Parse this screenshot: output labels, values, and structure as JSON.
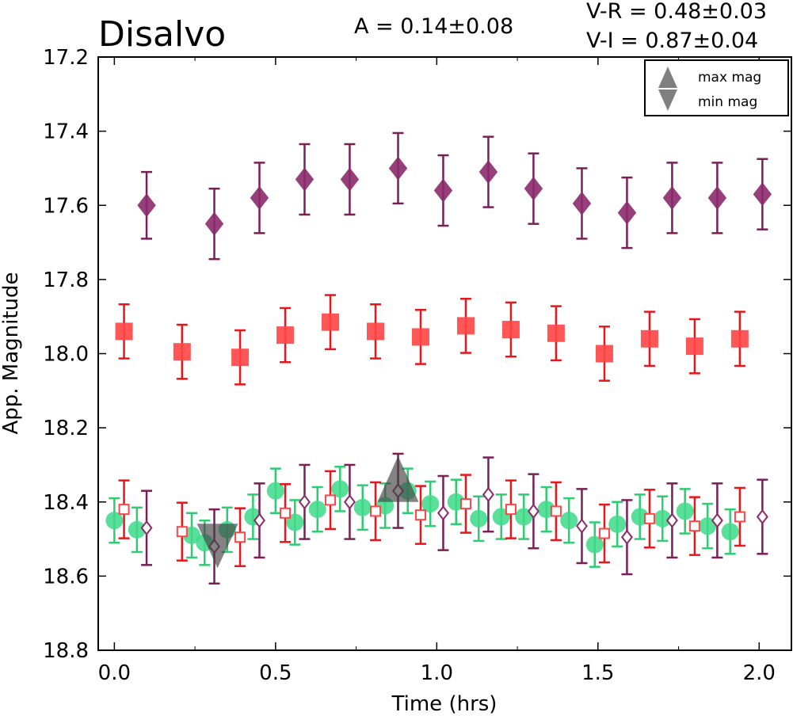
{
  "header": {
    "title": "Disalvo",
    "amplitude": "A  = 0.14±0.08",
    "color_vr": "V-R = 0.48±0.03",
    "color_vi": "V-I  = 0.87±0.04"
  },
  "chart_data": {
    "type": "scatter",
    "xlabel": "Time (hrs)",
    "ylabel": "App. Magnitude",
    "xlim": [
      -0.05,
      2.1
    ],
    "ylim": [
      18.8,
      17.2
    ],
    "y_inverted": true,
    "grid": false,
    "legend_position": "top-right",
    "x_ticks": [
      "0.0",
      "0.5",
      "1.0",
      "1.5",
      "2.0"
    ],
    "x_tick_values": [
      0.0,
      0.5,
      1.0,
      1.5,
      2.0
    ],
    "y_ticks": [
      "17.2",
      "17.4",
      "17.6",
      "17.8",
      "18.0",
      "18.2",
      "18.4",
      "18.6",
      "18.8"
    ],
    "y_tick_values": [
      17.2,
      17.4,
      17.6,
      17.8,
      18.0,
      18.2,
      18.4,
      18.6,
      18.8
    ],
    "legend": [
      {
        "label": "max mag",
        "marker": "triangle-up",
        "color": "#808080"
      },
      {
        "label": "min mag",
        "marker": "triangle-down",
        "color": "#808080"
      }
    ],
    "series": [
      {
        "marker": "diamond-filled",
        "color": "#8b2a6b",
        "errcolor": "#7a1f55",
        "x": [
          0.1,
          0.31,
          0.45,
          0.59,
          0.73,
          0.88,
          1.02,
          1.16,
          1.3,
          1.45,
          1.59,
          1.73,
          1.87,
          2.01
        ],
        "y": [
          17.6,
          17.65,
          17.58,
          17.53,
          17.53,
          17.5,
          17.56,
          17.51,
          17.555,
          17.595,
          17.62,
          17.58,
          17.58,
          17.57
        ],
        "err": [
          0.09,
          0.095,
          0.095,
          0.095,
          0.095,
          0.095,
          0.095,
          0.095,
          0.095,
          0.095,
          0.095,
          0.095,
          0.095,
          0.095
        ]
      },
      {
        "marker": "square-filled",
        "color": "#ff4545",
        "errcolor": "#e8151a",
        "x": [
          0.03,
          0.21,
          0.39,
          0.53,
          0.67,
          0.81,
          0.95,
          1.09,
          1.23,
          1.37,
          1.52,
          1.66,
          1.8,
          1.94
        ],
        "y": [
          17.94,
          17.995,
          18.01,
          17.95,
          17.915,
          17.94,
          17.955,
          17.925,
          17.935,
          17.945,
          18.0,
          17.96,
          17.98,
          17.96
        ],
        "err": [
          0.073,
          0.073,
          0.073,
          0.073,
          0.073,
          0.073,
          0.073,
          0.073,
          0.073,
          0.073,
          0.073,
          0.073,
          0.073,
          0.073
        ]
      },
      {
        "marker": "circle-filled",
        "color": "#3dd98a",
        "errcolor": "#2ecc71",
        "x": [
          0.0,
          0.07,
          0.24,
          0.28,
          0.35,
          0.43,
          0.5,
          0.56,
          0.63,
          0.7,
          0.77,
          0.84,
          0.91,
          0.98,
          1.06,
          1.13,
          1.2,
          1.27,
          1.34,
          1.41,
          1.49,
          1.56,
          1.63,
          1.7,
          1.77,
          1.84,
          1.91
        ],
        "y": [
          18.45,
          18.475,
          18.49,
          18.51,
          18.475,
          18.44,
          18.37,
          18.455,
          18.42,
          18.365,
          18.415,
          18.41,
          18.37,
          18.405,
          18.4,
          18.445,
          18.44,
          18.44,
          18.42,
          18.45,
          18.515,
          18.46,
          18.44,
          18.445,
          18.425,
          18.465,
          18.48
        ],
        "err": [
          0.06,
          0.06,
          0.06,
          0.06,
          0.06,
          0.06,
          0.06,
          0.06,
          0.06,
          0.06,
          0.06,
          0.06,
          0.06,
          0.06,
          0.06,
          0.06,
          0.06,
          0.06,
          0.06,
          0.06,
          0.06,
          0.06,
          0.06,
          0.06,
          0.06,
          0.06,
          0.06
        ]
      },
      {
        "marker": "square-open",
        "color": "#ff4545",
        "errcolor": "#e8151a",
        "x": [
          0.03,
          0.21,
          0.39,
          0.53,
          0.67,
          0.81,
          0.95,
          1.09,
          1.23,
          1.37,
          1.52,
          1.66,
          1.8,
          1.94
        ],
        "y": [
          18.42,
          18.48,
          18.495,
          18.43,
          18.395,
          18.425,
          18.435,
          18.405,
          18.42,
          18.425,
          18.485,
          18.445,
          18.465,
          18.44
        ],
        "err": [
          0.078,
          0.078,
          0.078,
          0.078,
          0.078,
          0.078,
          0.078,
          0.078,
          0.078,
          0.078,
          0.078,
          0.078,
          0.078,
          0.078
        ]
      },
      {
        "marker": "diamond-open",
        "color": "#8b2a6b",
        "errcolor": "#7a1f55",
        "x": [
          0.1,
          0.31,
          0.45,
          0.59,
          0.73,
          0.88,
          1.02,
          1.16,
          1.3,
          1.45,
          1.59,
          1.73,
          1.87,
          2.01
        ],
        "y": [
          18.47,
          18.52,
          18.45,
          18.4,
          18.4,
          18.37,
          18.43,
          18.38,
          18.425,
          18.465,
          18.495,
          18.45,
          18.45,
          18.44
        ],
        "err": [
          0.1,
          0.1,
          0.1,
          0.1,
          0.1,
          0.1,
          0.1,
          0.1,
          0.1,
          0.1,
          0.1,
          0.1,
          0.1,
          0.1
        ]
      }
    ],
    "extrema": [
      {
        "label": "min mag",
        "marker": "triangle-down",
        "x": 0.32,
        "y": 18.51,
        "color": "#404040"
      },
      {
        "label": "max mag",
        "marker": "triangle-up",
        "x": 0.88,
        "y": 18.4,
        "color": "#404040"
      }
    ]
  }
}
